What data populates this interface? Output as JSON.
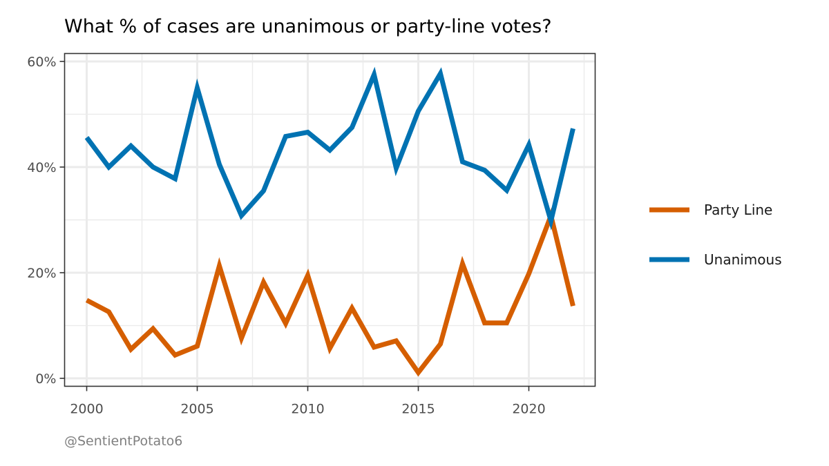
{
  "chart_data": {
    "type": "line",
    "title": "What % of cases are unanimous or party-line votes?",
    "xlabel": "",
    "ylabel": "",
    "caption": "@SentientPotato6",
    "x": [
      2000,
      2001,
      2002,
      2003,
      2004,
      2005,
      2006,
      2007,
      2008,
      2009,
      2010,
      2011,
      2012,
      2013,
      2014,
      2015,
      2016,
      2017,
      2018,
      2019,
      2020,
      2021,
      2022
    ],
    "xlim": [
      1999,
      2023
    ],
    "ylim": [
      -1.5,
      61.5
    ],
    "x_ticks": [
      2000,
      2005,
      2010,
      2015,
      2020
    ],
    "x_tick_labels": [
      "2000",
      "2005",
      "2010",
      "2015",
      "2020"
    ],
    "y_ticks": [
      0,
      20,
      40,
      60
    ],
    "y_tick_labels": [
      "0%",
      "20%",
      "40%",
      "60%"
    ],
    "grid": true,
    "legend_position": "right",
    "series": [
      {
        "name": "Party Line",
        "color": "#D55E00",
        "values": [
          14.8,
          12.6,
          5.5,
          9.4,
          4.4,
          6.1,
          21.3,
          7.6,
          18.2,
          10.4,
          19.5,
          5.7,
          13.3,
          5.9,
          7.1,
          1.1,
          6.5,
          21.7,
          10.5,
          10.5,
          19.8,
          30.8,
          13.7
        ]
      },
      {
        "name": "Unanimous",
        "color": "#0072B2",
        "values": [
          45.6,
          40.0,
          44.0,
          40.0,
          37.8,
          55.0,
          40.5,
          30.8,
          35.5,
          45.8,
          46.6,
          43.2,
          47.5,
          57.5,
          39.8,
          50.6,
          57.7,
          41.0,
          39.4,
          35.6,
          44.2,
          29.8,
          47.3
        ]
      }
    ]
  }
}
